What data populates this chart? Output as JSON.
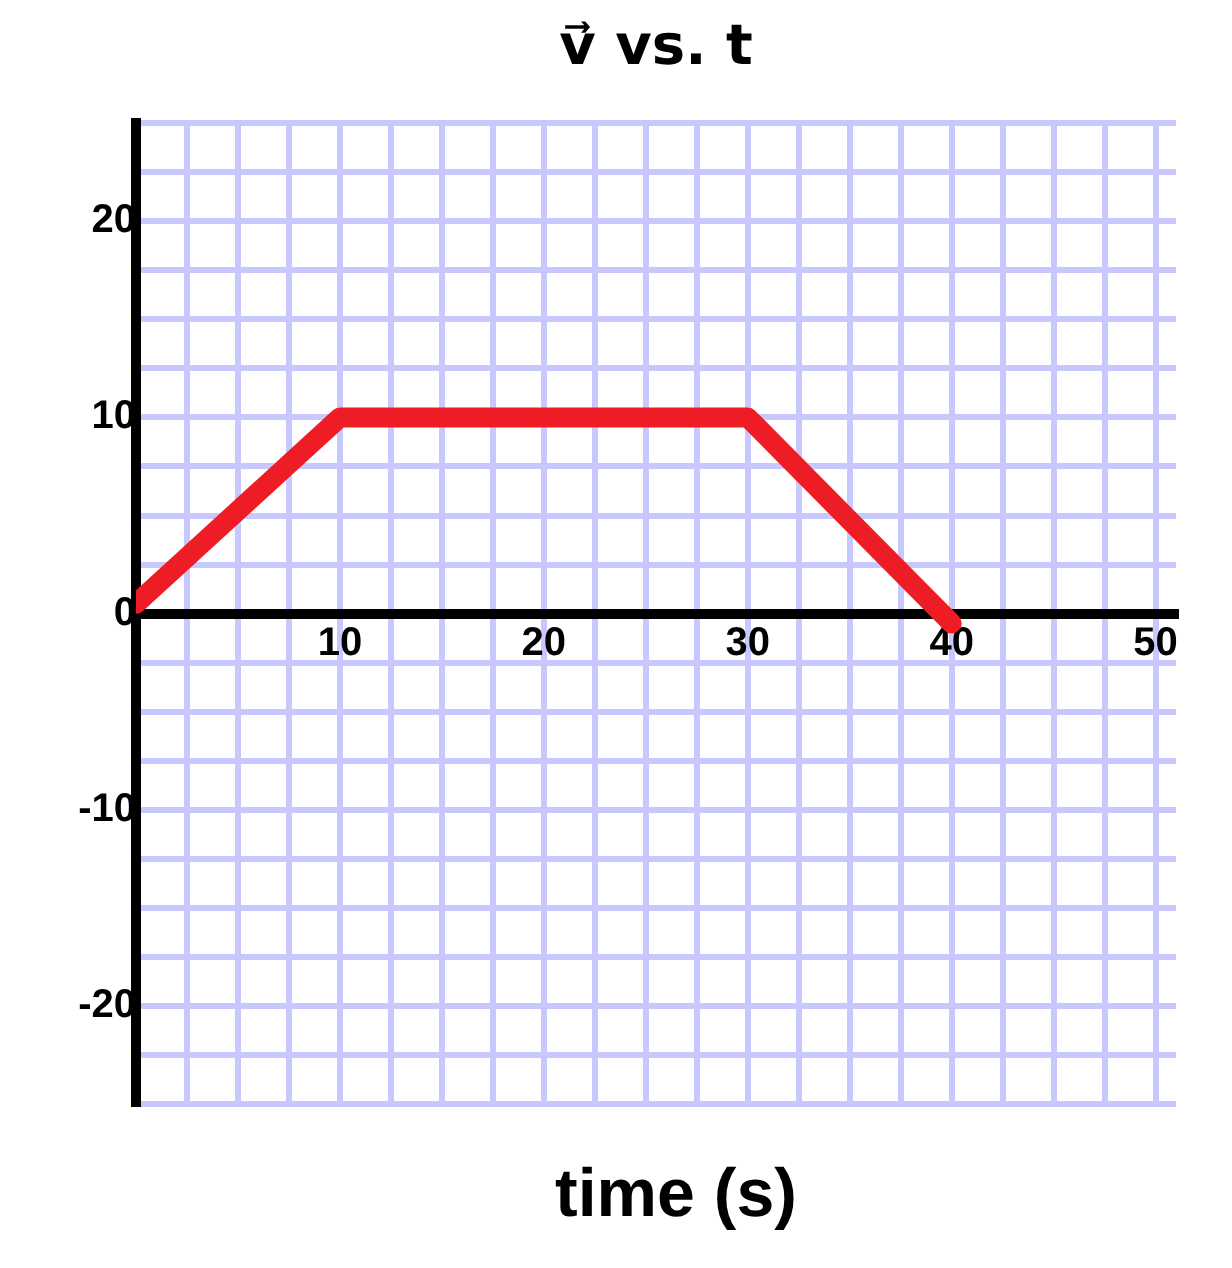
{
  "chart_data": {
    "type": "line",
    "title": "v⃗ vs. t",
    "xlabel": "time (s)",
    "x": [
      0,
      10,
      30,
      40
    ],
    "series": [
      {
        "color": "#ee1c24",
        "values": [
          0.5,
          10,
          10,
          -0.5
        ]
      }
    ],
    "xlim": [
      0,
      51
    ],
    "ylim": [
      -25,
      25
    ],
    "xticks": [
      {
        "value": 0,
        "label": null
      },
      {
        "value": 2.5,
        "label": null
      },
      {
        "value": 5,
        "label": null
      },
      {
        "value": 7.5,
        "label": null
      },
      10,
      {
        "value": 12.5,
        "label": null
      },
      {
        "value": 15,
        "label": null
      },
      {
        "value": 17.5,
        "label": null
      },
      20,
      {
        "value": 22.5,
        "label": null
      },
      {
        "value": 25,
        "label": null
      },
      {
        "value": 27.5,
        "label": null
      },
      30,
      {
        "value": 32.5,
        "label": null
      },
      {
        "value": 35,
        "label": null
      },
      {
        "value": 37.5,
        "label": null
      },
      40,
      {
        "value": 42.5,
        "label": null
      },
      {
        "value": 45,
        "label": null
      },
      {
        "value": 47.5,
        "label": null
      },
      50
    ],
    "yticks": [
      {
        "value": -25,
        "label": null
      },
      {
        "value": -22.5,
        "label": null
      },
      -20,
      {
        "value": -17.5,
        "label": null
      },
      {
        "value": -15,
        "label": null
      },
      {
        "value": -12.5,
        "label": null
      },
      -10,
      {
        "value": -7.5,
        "label": null
      },
      {
        "value": -5,
        "label": null
      },
      {
        "value": -2.5,
        "label": null
      },
      0,
      {
        "value": 2.5,
        "label": null
      },
      {
        "value": 5,
        "label": null
      },
      {
        "value": 7.5,
        "label": null
      },
      10,
      {
        "value": 12.5,
        "label": null
      },
      {
        "value": 15,
        "label": null
      },
      {
        "value": 17.5,
        "label": null
      },
      20,
      {
        "value": 22.5,
        "label": null
      },
      {
        "value": 25,
        "label": null
      }
    ],
    "grid": true,
    "legend": false,
    "marker": "none",
    "line_style": "solid"
  }
}
